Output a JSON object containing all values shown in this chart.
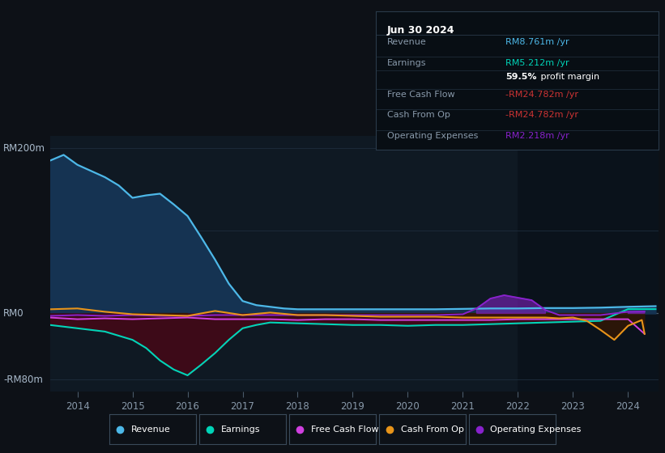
{
  "bg_color": "#0d1117",
  "plot_bg_color": "#0f1923",
  "grid_color": "#1e2d3d",
  "zero_line_color": "#4a5a6a",
  "ylim": [
    -95,
    215
  ],
  "xticks": [
    2014,
    2015,
    2016,
    2017,
    2018,
    2019,
    2020,
    2021,
    2022,
    2023,
    2024
  ],
  "colors": {
    "revenue": "#4db8e8",
    "revenue_fill": "#153352",
    "earnings": "#00d4b8",
    "earnings_fill": "#3d0a18",
    "free_cash_flow": "#d040e0",
    "cash_from_op": "#e8941a",
    "operating_expenses": "#8822cc"
  },
  "legend": [
    {
      "label": "Revenue",
      "color": "#4db8e8"
    },
    {
      "label": "Earnings",
      "color": "#00d4b8"
    },
    {
      "label": "Free Cash Flow",
      "color": "#d040e0"
    },
    {
      "label": "Cash From Op",
      "color": "#e8941a"
    },
    {
      "label": "Operating Expenses",
      "color": "#8822cc"
    }
  ],
  "infobox": {
    "title": "Jun 30 2024",
    "bg_color": "#080e14",
    "border_color": "#2a3a4a",
    "rows": [
      {
        "label": "Revenue",
        "value": "RM8.761m /yr",
        "value_color": "#4db8e8"
      },
      {
        "label": "Earnings",
        "value": "RM5.212m /yr",
        "value_color": "#00d4b8"
      },
      {
        "label": "",
        "value2_bold": "59.5%",
        "value2_normal": " profit margin",
        "value_color": "#ffffff"
      },
      {
        "label": "Free Cash Flow",
        "value": "-RM24.782m /yr",
        "value_color": "#cc3333"
      },
      {
        "label": "Cash From Op",
        "value": "-RM24.782m /yr",
        "value_color": "#cc3333"
      },
      {
        "label": "Operating Expenses",
        "value": "RM2.218m /yr",
        "value_color": "#8822cc"
      }
    ]
  },
  "revenue_x": [
    2013.5,
    2013.75,
    2014.0,
    2014.5,
    2014.75,
    2015.0,
    2015.25,
    2015.5,
    2015.75,
    2016.0,
    2016.25,
    2016.5,
    2016.75,
    2017.0,
    2017.25,
    2017.5,
    2017.75,
    2018.0,
    2018.5,
    2019.0,
    2019.5,
    2020.0,
    2020.5,
    2021.0,
    2021.5,
    2022.0,
    2022.5,
    2023.0,
    2023.5,
    2024.0,
    2024.5
  ],
  "revenue_y": [
    185,
    192,
    180,
    165,
    155,
    140,
    143,
    145,
    132,
    118,
    92,
    65,
    36,
    15,
    10,
    8,
    6,
    5,
    5,
    5,
    5,
    5,
    5,
    5.5,
    6,
    6,
    6.5,
    6.5,
    7,
    8,
    8.761
  ],
  "earnings_x": [
    2013.5,
    2014.0,
    2014.5,
    2014.75,
    2015.0,
    2015.25,
    2015.5,
    2015.75,
    2016.0,
    2016.25,
    2016.5,
    2016.75,
    2017.0,
    2017.25,
    2017.5,
    2018.0,
    2018.5,
    2019.0,
    2019.5,
    2020.0,
    2020.5,
    2021.0,
    2021.5,
    2022.0,
    2022.5,
    2023.0,
    2023.5,
    2024.0,
    2024.5
  ],
  "earnings_y": [
    -14,
    -18,
    -22,
    -27,
    -32,
    -42,
    -57,
    -68,
    -75,
    -62,
    -48,
    -32,
    -18,
    -14,
    -11,
    -12,
    -13,
    -14,
    -14,
    -15,
    -14,
    -14,
    -13,
    -12,
    -11,
    -10,
    -9,
    5.212,
    5.212
  ],
  "fcf_x": [
    2013.5,
    2014.0,
    2014.5,
    2015.0,
    2015.5,
    2016.0,
    2016.5,
    2017.0,
    2017.5,
    2018.0,
    2018.5,
    2019.0,
    2019.5,
    2020.0,
    2020.5,
    2021.0,
    2021.5,
    2022.0,
    2022.5,
    2023.0,
    2023.5,
    2024.0,
    2024.3
  ],
  "fcf_y": [
    -5,
    -7,
    -6,
    -7,
    -6,
    -5,
    -7,
    -7,
    -7,
    -8,
    -7,
    -7,
    -8,
    -8,
    -8,
    -8,
    -8,
    -7,
    -7,
    -7,
    -7,
    -7,
    -24.782
  ],
  "cfo_x": [
    2013.5,
    2014.0,
    2014.25,
    2014.5,
    2015.0,
    2015.5,
    2016.0,
    2016.5,
    2017.0,
    2017.5,
    2018.0,
    2018.5,
    2019.0,
    2019.5,
    2020.0,
    2020.5,
    2021.0,
    2021.5,
    2022.0,
    2022.5,
    2022.75,
    2023.0,
    2023.25,
    2023.5,
    2023.75,
    2024.0,
    2024.25,
    2024.3
  ],
  "cfo_y": [
    5,
    6,
    4,
    2,
    -1,
    -2,
    -3,
    3,
    -2,
    1,
    -2,
    -2,
    -3,
    -4,
    -4,
    -4,
    -5,
    -5,
    -5,
    -5,
    -6,
    -5,
    -9,
    -20,
    -32,
    -15,
    -8,
    -24.782
  ],
  "opex_x": [
    2013.5,
    2014.0,
    2014.5,
    2015.0,
    2015.5,
    2016.0,
    2016.5,
    2017.0,
    2017.5,
    2018.0,
    2018.5,
    2019.0,
    2019.5,
    2020.0,
    2020.5,
    2021.0,
    2021.25,
    2021.5,
    2021.75,
    2022.0,
    2022.25,
    2022.5,
    2022.75,
    2023.0,
    2023.5,
    2024.0,
    2024.3
  ],
  "opex_y": [
    -3,
    -2,
    -3,
    -2,
    -3,
    -3,
    -2,
    -2,
    -2,
    -2,
    -2,
    -2,
    -2,
    -2,
    -2,
    -1,
    6,
    18,
    22,
    19,
    16,
    4,
    -2,
    -2,
    -2,
    2,
    2.218
  ]
}
